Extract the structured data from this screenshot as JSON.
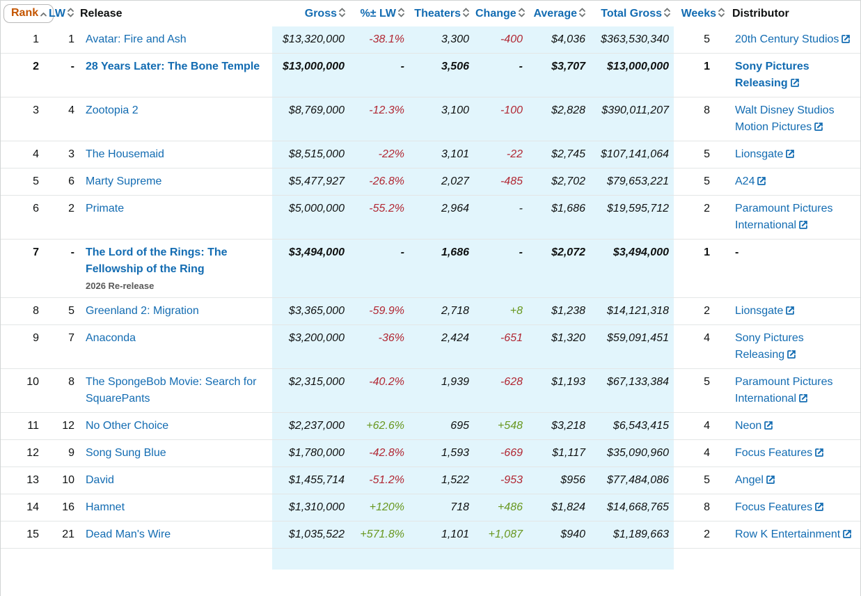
{
  "colors": {
    "link_blue": "#136cb2",
    "sorted_orange": "#c45500",
    "negative_red": "#b12733",
    "positive_green": "#68971f",
    "highlight_blue": "#e2f5fc",
    "note_gray": "#595959",
    "sort_caret_gray": "#6f7373"
  },
  "table": {
    "columns": [
      {
        "key": "rank",
        "label": "Rank",
        "sortable": true,
        "sorted": "asc"
      },
      {
        "key": "lw",
        "label": "LW",
        "sortable": true
      },
      {
        "key": "release",
        "label": "Release",
        "sortable": false
      },
      {
        "key": "gross",
        "label": "Gross",
        "sortable": true,
        "highlight": true
      },
      {
        "key": "pct",
        "label": "%± LW",
        "sortable": true,
        "highlight": true
      },
      {
        "key": "theaters",
        "label": "Theaters",
        "sortable": true,
        "highlight": true
      },
      {
        "key": "change",
        "label": "Change",
        "sortable": true,
        "highlight": true
      },
      {
        "key": "average",
        "label": "Average",
        "sortable": true,
        "highlight": true
      },
      {
        "key": "total",
        "label": "Total Gross",
        "sortable": true,
        "highlight": true
      },
      {
        "key": "weeks",
        "label": "Weeks",
        "sortable": true
      },
      {
        "key": "distributor",
        "label": "Distributor",
        "sortable": false
      }
    ],
    "rows": [
      {
        "rank": "1",
        "lw": "1",
        "title": "Avatar: Fire and Ash",
        "gross": "$13,320,000",
        "pct": "-38.1%",
        "theaters": "3,300",
        "change": "-400",
        "average": "$4,036",
        "total": "$363,530,340",
        "weeks": "5",
        "distributor": "20th Century Studios",
        "dist_link": true,
        "bold": false
      },
      {
        "rank": "2",
        "lw": "-",
        "title": "28 Years Later: The Bone Temple",
        "gross": "$13,000,000",
        "pct": "-",
        "theaters": "3,506",
        "change": "-",
        "average": "$3,707",
        "total": "$13,000,000",
        "weeks": "1",
        "distributor": "Sony Pictures Releasing",
        "dist_link": true,
        "bold": true
      },
      {
        "rank": "3",
        "lw": "4",
        "title": "Zootopia 2",
        "gross": "$8,769,000",
        "pct": "-12.3%",
        "theaters": "3,100",
        "change": "-100",
        "average": "$2,828",
        "total": "$390,011,207",
        "weeks": "8",
        "distributor": "Walt Disney Studios Motion Pictures",
        "dist_link": true,
        "bold": false
      },
      {
        "rank": "4",
        "lw": "3",
        "title": "The Housemaid",
        "gross": "$8,515,000",
        "pct": "-22%",
        "theaters": "3,101",
        "change": "-22",
        "average": "$2,745",
        "total": "$107,141,064",
        "weeks": "5",
        "distributor": "Lionsgate",
        "dist_link": true,
        "bold": false
      },
      {
        "rank": "5",
        "lw": "6",
        "title": "Marty Supreme",
        "gross": "$5,477,927",
        "pct": "-26.8%",
        "theaters": "2,027",
        "change": "-485",
        "average": "$2,702",
        "total": "$79,653,221",
        "weeks": "5",
        "distributor": "A24",
        "dist_link": true,
        "bold": false
      },
      {
        "rank": "6",
        "lw": "2",
        "title": "Primate",
        "gross": "$5,000,000",
        "pct": "-55.2%",
        "theaters": "2,964",
        "change": "-",
        "average": "$1,686",
        "total": "$19,595,712",
        "weeks": "2",
        "distributor": "Paramount Pictures International",
        "dist_link": true,
        "bold": false
      },
      {
        "rank": "7",
        "lw": "-",
        "title": "The Lord of the Rings: The Fellowship of the Ring",
        "note": "2026 Re-release",
        "gross": "$3,494,000",
        "pct": "-",
        "theaters": "1,686",
        "change": "-",
        "average": "$2,072",
        "total": "$3,494,000",
        "weeks": "1",
        "distributor": "-",
        "dist_link": false,
        "bold": true
      },
      {
        "rank": "8",
        "lw": "5",
        "title": "Greenland 2: Migration",
        "gross": "$3,365,000",
        "pct": "-59.9%",
        "theaters": "2,718",
        "change": "+8",
        "average": "$1,238",
        "total": "$14,121,318",
        "weeks": "2",
        "distributor": "Lionsgate",
        "dist_link": true,
        "bold": false
      },
      {
        "rank": "9",
        "lw": "7",
        "title": "Anaconda",
        "gross": "$3,200,000",
        "pct": "-36%",
        "theaters": "2,424",
        "change": "-651",
        "average": "$1,320",
        "total": "$59,091,451",
        "weeks": "4",
        "distributor": "Sony Pictures Releasing",
        "dist_link": true,
        "bold": false
      },
      {
        "rank": "10",
        "lw": "8",
        "title": "The SpongeBob Movie: Search for SquarePants",
        "gross": "$2,315,000",
        "pct": "-40.2%",
        "theaters": "1,939",
        "change": "-628",
        "average": "$1,193",
        "total": "$67,133,384",
        "weeks": "5",
        "distributor": "Paramount Pictures International",
        "dist_link": true,
        "bold": false
      },
      {
        "rank": "11",
        "lw": "12",
        "title": "No Other Choice",
        "gross": "$2,237,000",
        "pct": "+62.6%",
        "theaters": "695",
        "change": "+548",
        "average": "$3,218",
        "total": "$6,543,415",
        "weeks": "4",
        "distributor": "Neon",
        "dist_link": true,
        "bold": false
      },
      {
        "rank": "12",
        "lw": "9",
        "title": "Song Sung Blue",
        "gross": "$1,780,000",
        "pct": "-42.8%",
        "theaters": "1,593",
        "change": "-669",
        "average": "$1,117",
        "total": "$35,090,960",
        "weeks": "4",
        "distributor": "Focus Features",
        "dist_link": true,
        "bold": false
      },
      {
        "rank": "13",
        "lw": "10",
        "title": "David",
        "gross": "$1,455,714",
        "pct": "-51.2%",
        "theaters": "1,522",
        "change": "-953",
        "average": "$956",
        "total": "$77,484,086",
        "weeks": "5",
        "distributor": "Angel",
        "dist_link": true,
        "bold": false
      },
      {
        "rank": "14",
        "lw": "16",
        "title": "Hamnet",
        "gross": "$1,310,000",
        "pct": "+120%",
        "theaters": "718",
        "change": "+486",
        "average": "$1,824",
        "total": "$14,668,765",
        "weeks": "8",
        "distributor": "Focus Features",
        "dist_link": true,
        "bold": false
      },
      {
        "rank": "15",
        "lw": "21",
        "title": "Dead Man's Wire",
        "gross": "$1,035,522",
        "pct": "+571.8%",
        "theaters": "1,101",
        "change": "+1,087",
        "average": "$940",
        "total": "$1,189,663",
        "weeks": "2",
        "distributor": "Row K Entertainment",
        "dist_link": true,
        "bold": false
      }
    ]
  }
}
